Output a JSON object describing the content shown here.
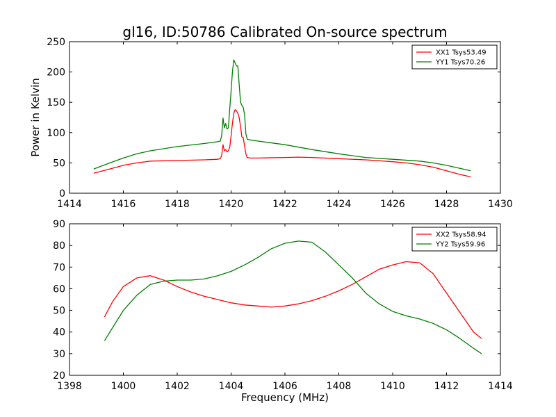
{
  "figure": {
    "title": "gl16, ID:50786 Calibrated On-source spectrum",
    "xlabel": "Frequency (MHz)",
    "ylabel": "Power in Kelvin"
  },
  "chart_data": [
    {
      "type": "line",
      "title": "gl16, ID:50786 Calibrated On-source spectrum",
      "xlabel": "",
      "ylabel": "Power in Kelvin",
      "xlim": [
        1414,
        1430
      ],
      "ylim": [
        0,
        250
      ],
      "xticks": [
        "1414",
        "1416",
        "1418",
        "1420",
        "1422",
        "1424",
        "1426",
        "1428",
        "1430"
      ],
      "yticks": [
        "0",
        "50",
        "100",
        "150",
        "200",
        "250"
      ],
      "grid": false,
      "legend_position": "top-right",
      "series": [
        {
          "name": "XX1 Tsys53.49",
          "color": "#ff0000",
          "x": [
            1414.9,
            1415.5,
            1416.0,
            1416.5,
            1417.0,
            1418.0,
            1419.0,
            1419.5,
            1419.6,
            1419.65,
            1419.7,
            1419.75,
            1419.8,
            1419.85,
            1419.9,
            1419.95,
            1420.0,
            1420.05,
            1420.1,
            1420.15,
            1420.2,
            1420.25,
            1420.3,
            1420.35,
            1420.4,
            1420.45,
            1420.5,
            1420.55,
            1420.6,
            1420.7,
            1421.0,
            1422.0,
            1422.5,
            1423.0,
            1424.0,
            1425.0,
            1426.0,
            1426.5,
            1427.0,
            1427.5,
            1428.0,
            1428.5,
            1428.9
          ],
          "y": [
            33,
            40,
            46,
            50,
            53,
            54,
            55,
            56,
            57,
            62,
            80,
            70,
            72,
            68,
            70,
            76,
            95,
            115,
            132,
            138,
            136,
            132,
            125,
            110,
            93,
            92,
            78,
            65,
            59,
            58,
            58,
            59,
            59.5,
            59,
            57,
            55,
            52,
            50,
            47,
            43,
            37,
            31,
            27
          ]
        },
        {
          "name": "YY1 Tsys70.26",
          "color": "#008000",
          "x": [
            1414.9,
            1415.5,
            1416.0,
            1416.5,
            1417.0,
            1418.0,
            1419.0,
            1419.5,
            1419.6,
            1419.65,
            1419.7,
            1419.75,
            1419.8,
            1419.85,
            1419.9,
            1419.95,
            1420.0,
            1420.05,
            1420.1,
            1420.15,
            1420.2,
            1420.25,
            1420.3,
            1420.35,
            1420.4,
            1420.45,
            1420.5,
            1420.55,
            1420.6,
            1420.7,
            1421.0,
            1422.0,
            1423.0,
            1424.0,
            1425.0,
            1426.0,
            1427.0,
            1427.5,
            1428.0,
            1428.5,
            1428.9
          ],
          "y": [
            40,
            50,
            58,
            65,
            70,
            77,
            82,
            85,
            86,
            95,
            124,
            108,
            115,
            106,
            108,
            140,
            168,
            200,
            220,
            215,
            210,
            210,
            180,
            150,
            145,
            142,
            130,
            98,
            89,
            88,
            86,
            80,
            72,
            65,
            59,
            56,
            53,
            50,
            46,
            41,
            37
          ]
        }
      ]
    },
    {
      "type": "line",
      "title": "",
      "xlabel": "Frequency (MHz)",
      "ylabel": "",
      "xlim": [
        1398,
        1414
      ],
      "ylim": [
        20,
        90
      ],
      "xticks": [
        "1398",
        "1400",
        "1402",
        "1404",
        "1406",
        "1408",
        "1410",
        "1412",
        "1414"
      ],
      "yticks": [
        "20",
        "30",
        "40",
        "50",
        "60",
        "70",
        "80",
        "90"
      ],
      "grid": false,
      "legend_position": "top-right",
      "series": [
        {
          "name": "XX2 Tsys58.94",
          "color": "#ff0000",
          "x": [
            1399.3,
            1399.6,
            1400.0,
            1400.5,
            1401.0,
            1401.5,
            1402.0,
            1402.5,
            1403.0,
            1403.5,
            1404.0,
            1404.5,
            1405.0,
            1405.5,
            1406.0,
            1406.5,
            1407.0,
            1407.5,
            1408.0,
            1408.5,
            1409.0,
            1409.5,
            1410.0,
            1410.5,
            1411.0,
            1411.5,
            1412.0,
            1412.5,
            1413.0,
            1413.3
          ],
          "y": [
            47,
            54,
            61,
            65,
            66,
            64,
            61,
            58.5,
            56.5,
            55,
            53.5,
            52.5,
            52,
            51.5,
            52,
            53,
            54.5,
            56.5,
            59,
            62,
            65.5,
            69,
            71,
            72.5,
            72,
            67,
            58,
            49,
            40,
            37
          ]
        },
        {
          "name": "YY2 Tsys59.96",
          "color": "#008000",
          "x": [
            1399.3,
            1399.6,
            1400.0,
            1400.5,
            1401.0,
            1401.5,
            1402.0,
            1402.5,
            1403.0,
            1403.5,
            1404.0,
            1404.5,
            1405.0,
            1405.5,
            1406.0,
            1406.5,
            1407.0,
            1407.5,
            1408.0,
            1408.5,
            1409.0,
            1409.5,
            1410.0,
            1410.5,
            1411.0,
            1411.5,
            1412.0,
            1412.5,
            1413.0,
            1413.3
          ],
          "y": [
            36,
            42,
            50,
            57,
            62,
            63.5,
            64,
            64,
            64.5,
            66,
            68,
            71,
            74.5,
            78.5,
            81,
            82,
            81.5,
            77,
            71,
            65,
            58,
            53,
            49.5,
            47.5,
            46,
            44,
            41,
            37,
            32.5,
            30
          ]
        }
      ]
    }
  ]
}
